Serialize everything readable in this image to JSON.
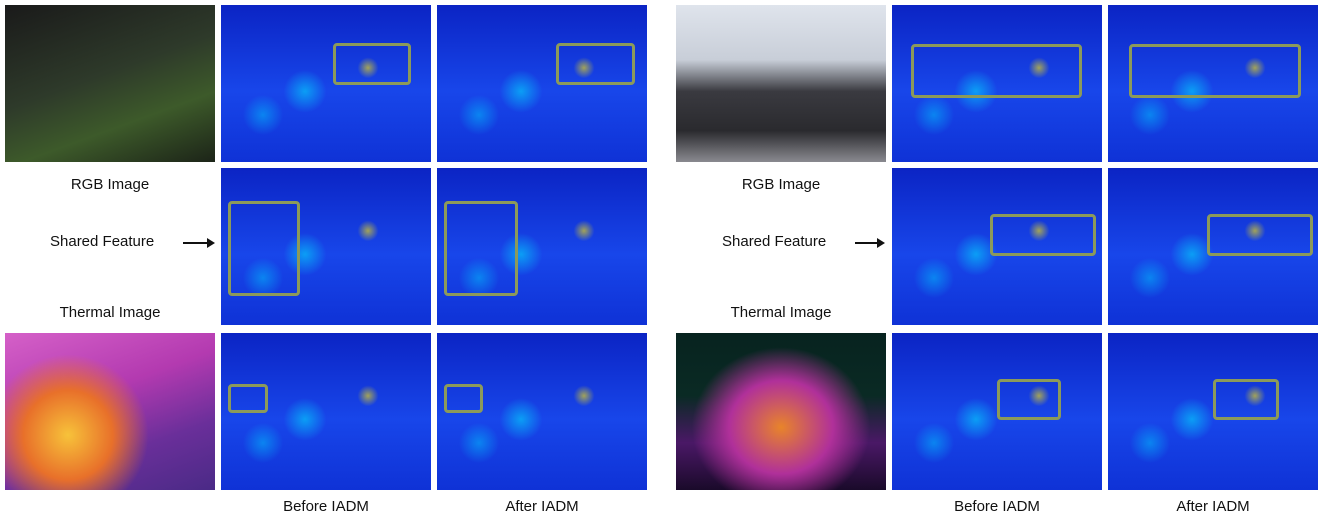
{
  "panels": [
    {
      "rgb_label": "RGB Image",
      "shared_label": "Shared Feature",
      "thermal_label": "Thermal Image",
      "before_caption": "Before IADM",
      "after_caption": "After IADM"
    },
    {
      "rgb_label": "RGB Image",
      "shared_label": "Shared Feature",
      "thermal_label": "Thermal Image",
      "before_caption": "Before IADM",
      "after_caption": "After IADM"
    }
  ]
}
